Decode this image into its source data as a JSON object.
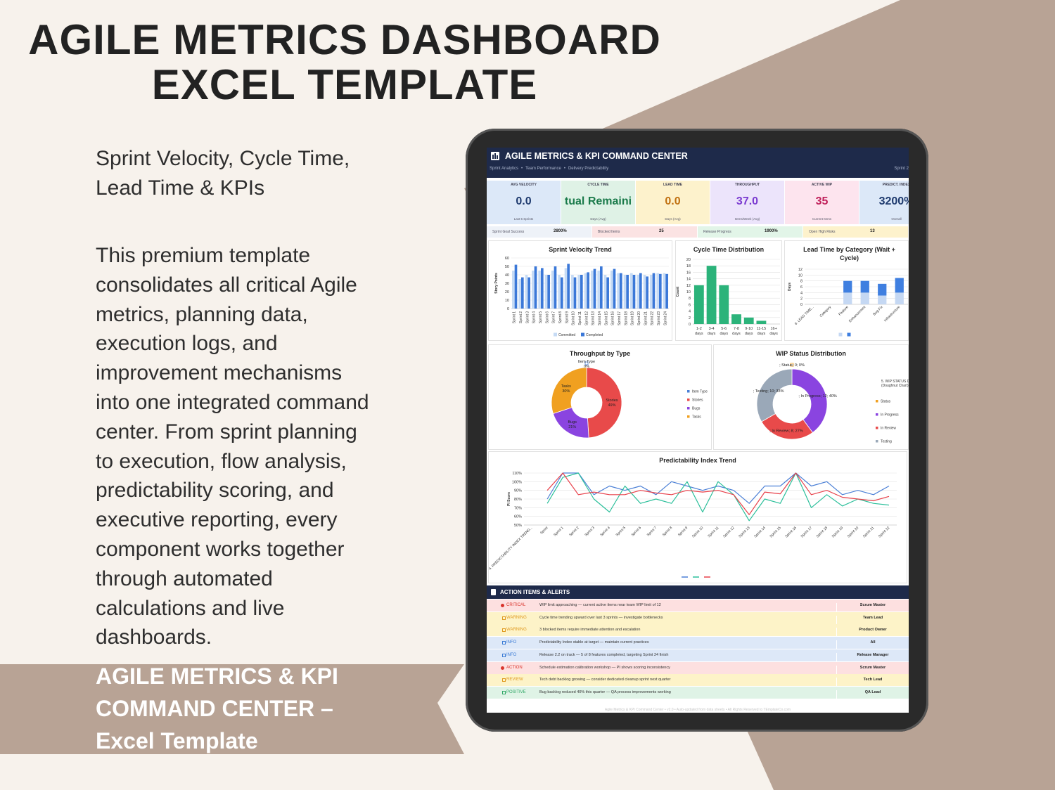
{
  "header": {
    "title_lines": [
      "AGILE METRICS DASHBOARD",
      "EXCEL TEMPLATE"
    ]
  },
  "subtitle_lines": [
    "Sprint Velocity, Cycle Time,",
    "Lead Time & KPIs"
  ],
  "description_lines": [
    "This premium template",
    "consolidates all critical Agile",
    "metrics, planning data,",
    "execution logs, and",
    "improvement mechanisms",
    "into one integrated command",
    "center. From sprint planning",
    "to execution, flow analysis,",
    "predictability scoring, and",
    "executive reporting, every",
    "component works together",
    "through automated",
    "calculations and live",
    "dashboards."
  ],
  "banner_lines": [
    "AGILE METRICS & KPI",
    "COMMAND CENTER –",
    "Excel Template"
  ],
  "dashboard": {
    "title": "AGILE METRICS & KPI COMMAND CENTER",
    "nav": [
      "Sprint Analytics",
      "Team Performance",
      "Delivery Predictability"
    ],
    "sprint": "Sprint 2",
    "kpis": [
      {
        "label": "AVG VELOCITY",
        "value": "0.0",
        "note": "Last 5 Sprints"
      },
      {
        "label": "CYCLE TIME",
        "value": "tual Remaini",
        "note": "Days (Avg)"
      },
      {
        "label": "LEAD TIME",
        "value": "0.0",
        "note": "Days (Avg)"
      },
      {
        "label": "THROUGHPUT",
        "value": "37.0",
        "note": "Items/Week (Avg)"
      },
      {
        "label": "ACTIVE WIP",
        "value": "35",
        "note": "Current Items"
      },
      {
        "label": "PREDICT. INDEX",
        "value": "3200%",
        "note": "Overall"
      }
    ],
    "strip": [
      {
        "label": "Sprint Goal Success",
        "value": "2800%"
      },
      {
        "label": "Blocked Items",
        "value": "25"
      },
      {
        "label": "Release Progress",
        "value": "1900%"
      },
      {
        "label": "Open High Risks",
        "value": "13"
      }
    ],
    "actions": {
      "title": "ACTION ITEMS & ALERTS",
      "rows": [
        {
          "level": "CRITICAL",
          "text": "WIP limit approaching — current active items near team WIP limit of 12",
          "owner": "Scrum Master"
        },
        {
          "level": "WARNING",
          "text": "Cycle time trending upward over last 3 sprints — investigate bottlenecks",
          "owner": "Team Lead"
        },
        {
          "level": "WARNING",
          "text": "3 blocked items require immediate attention and escalation",
          "owner": "Product Owner"
        },
        {
          "level": "INFO",
          "text": "Predictability Index stable at target — maintain current practices",
          "owner": "All"
        },
        {
          "level": "INFO",
          "text": "Release 2.2 on track — 5 of 8 features completed, targeting Sprint 24 finish",
          "owner": "Release Manager"
        },
        {
          "level": "ACTION",
          "text": "Schedule estimation calibration workshop — PI shows scoring inconsistency",
          "owner": "Scrum Master"
        },
        {
          "level": "REVIEW",
          "text": "Tech debt backlog growing — consider dedicated cleanup sprint next quarter",
          "owner": "Tech Lead"
        },
        {
          "level": "POSITIVE",
          "text": "Bug backlog reduced 40% this quarter — QA process improvements working",
          "owner": "QA Lead"
        }
      ]
    },
    "footer": "Agile Metrics & KPI Command Center • v2.0 • Auto-updated from data sheets • All Rights Reserved to TEmplateCo.com"
  },
  "chart_data": [
    {
      "type": "bar",
      "title": "Sprint Velocity Trend",
      "y_label": "Story Points",
      "categories": [
        "Sprint 1",
        "Sprint 2",
        "Sprint 3",
        "Sprint 4",
        "Sprint 5",
        "Sprint 6",
        "Sprint 7",
        "Sprint 8",
        "Sprint 9",
        "Sprint 10",
        "Sprint 11",
        "Sprint 12",
        "Sprint 13",
        "Sprint 14",
        "Sprint 15",
        "Sprint 16",
        "Sprint 17",
        "Sprint 18",
        "Sprint 19",
        "Sprint 20",
        "Sprint 21",
        "Sprint 22",
        "Sprint 23",
        "Sprint 24"
      ],
      "series": [
        {
          "name": "Committed",
          "color": "#c6dbf5",
          "values": [
            45,
            35,
            40,
            45,
            45,
            40,
            45,
            40,
            48,
            40,
            40,
            42,
            45,
            45,
            40,
            45,
            42,
            40,
            42,
            40,
            40,
            40,
            42,
            42
          ]
        },
        {
          "name": "Completed",
          "color": "#3b78d8",
          "values": [
            52,
            37,
            37,
            50,
            48,
            40,
            50,
            37,
            53,
            37,
            40,
            43,
            47,
            50,
            37,
            47,
            42,
            40,
            40,
            42,
            38,
            42,
            41,
            41
          ]
        }
      ],
      "ylim": [
        0,
        60
      ],
      "yticks": [
        0,
        10,
        20,
        30,
        40,
        50,
        60
      ],
      "grid": true
    },
    {
      "type": "bar",
      "title": "Cycle Time Distribution",
      "y_label": "Count",
      "categories": [
        "1-2 days",
        "3-4 days",
        "5-6 days",
        "7-8 days",
        "9-10 days",
        "11-15 days",
        "16+ days"
      ],
      "values": [
        12,
        18,
        12,
        3,
        2,
        1,
        0
      ],
      "color": "#2bb37a",
      "ylim": [
        0,
        20
      ],
      "yticks": [
        0,
        2,
        4,
        6,
        8,
        10,
        12,
        14,
        16,
        18,
        20
      ],
      "grid": true
    },
    {
      "type": "bar",
      "stacked": true,
      "title": "Lead Time by Category (Wait + Cycle)",
      "y_label": "Days",
      "categories": [
        "6. LEAD TIME...",
        "Category",
        "Feature",
        "Enhancement",
        "Bug Fix",
        "Infrastructure"
      ],
      "series": [
        {
          "color": "#c5d8f3",
          "values": [
            null,
            null,
            4,
            4,
            3,
            4
          ]
        },
        {
          "color": "#3f7fe0",
          "values": [
            null,
            null,
            4,
            4,
            4,
            5
          ]
        }
      ],
      "ylim": [
        0,
        12
      ],
      "yticks": [
        0,
        2,
        4,
        6,
        8,
        10,
        12
      ],
      "grid": true
    },
    {
      "type": "doughnut",
      "title": "Throughput by Type",
      "categories": [
        "Item Type",
        "Stories",
        "Bugs",
        "Tasks"
      ],
      "values": [
        0,
        49,
        21,
        30
      ],
      "value_labels": [
        "0%",
        "49%",
        "21%",
        "30%"
      ],
      "colors": [
        "#4a7fd6",
        "#e84a4a",
        "#8a44e0",
        "#f0a020"
      ]
    },
    {
      "type": "doughnut",
      "title": "WIP Status Distribution",
      "legend_title": "5. WIP STATUS D (Doughnut Chart)",
      "categories": [
        "Status",
        "In Progress",
        "In Review",
        "Testing"
      ],
      "values": [
        0,
        12,
        8,
        10
      ],
      "value_labels": [
        "; Status; 0; 0%",
        "; In Progress; 12; 40%",
        "; In Review; 8; 27%",
        "; Testing; 10; 33%"
      ],
      "colors": [
        "#f0a020",
        "#8a44e0",
        "#e84a4a",
        "#9aa8b8"
      ]
    },
    {
      "type": "line",
      "title": "Predictability Index Trend",
      "y_label": "PI Score",
      "categories": [
        "4. PREDICTABILITY INDEX TREND...",
        "Sprint",
        "Sprint 1",
        "Sprint 2",
        "Sprint 3",
        "Sprint 4",
        "Sprint 5",
        "Sprint 6",
        "Sprint 7",
        "Sprint 8",
        "Sprint 9",
        "Sprint 10",
        "Sprint 11",
        "Sprint 12",
        "Sprint 13",
        "Sprint 14",
        "Sprint 15",
        "Sprint 16",
        "Sprint 17",
        "Sprint 18",
        "Sprint 19",
        "Sprint 20",
        "Sprint 21",
        "Sprint 22"
      ],
      "series": [
        {
          "color": "#4a7fd6",
          "values": [
            null,
            80,
            110,
            110,
            85,
            95,
            90,
            95,
            85,
            100,
            95,
            90,
            95,
            90,
            75,
            95,
            95,
            110,
            95,
            100,
            85,
            90,
            85,
            95
          ]
        },
        {
          "color": "#2bbf9a",
          "values": [
            null,
            75,
            105,
            110,
            80,
            65,
            95,
            75,
            80,
            75,
            100,
            65,
            100,
            85,
            55,
            80,
            75,
            110,
            70,
            85,
            72,
            80,
            75,
            73
          ]
        },
        {
          "color": "#e8404a",
          "values": [
            null,
            90,
            110,
            85,
            88,
            85,
            85,
            90,
            87,
            85,
            90,
            88,
            90,
            85,
            62,
            88,
            86,
            110,
            85,
            90,
            82,
            80,
            78,
            83
          ]
        }
      ],
      "ylim": [
        50,
        110
      ],
      "yticks": [
        {
          "value": 50,
          "label": "50%"
        },
        {
          "value": 60,
          "label": "60%"
        },
        {
          "value": 70,
          "label": "70%"
        },
        {
          "value": 80,
          "label": "80%"
        },
        {
          "value": 90,
          "label": "90%"
        },
        {
          "value": 100,
          "label": "100%"
        },
        {
          "value": 110,
          "label": "110%"
        }
      ],
      "grid": true
    }
  ]
}
